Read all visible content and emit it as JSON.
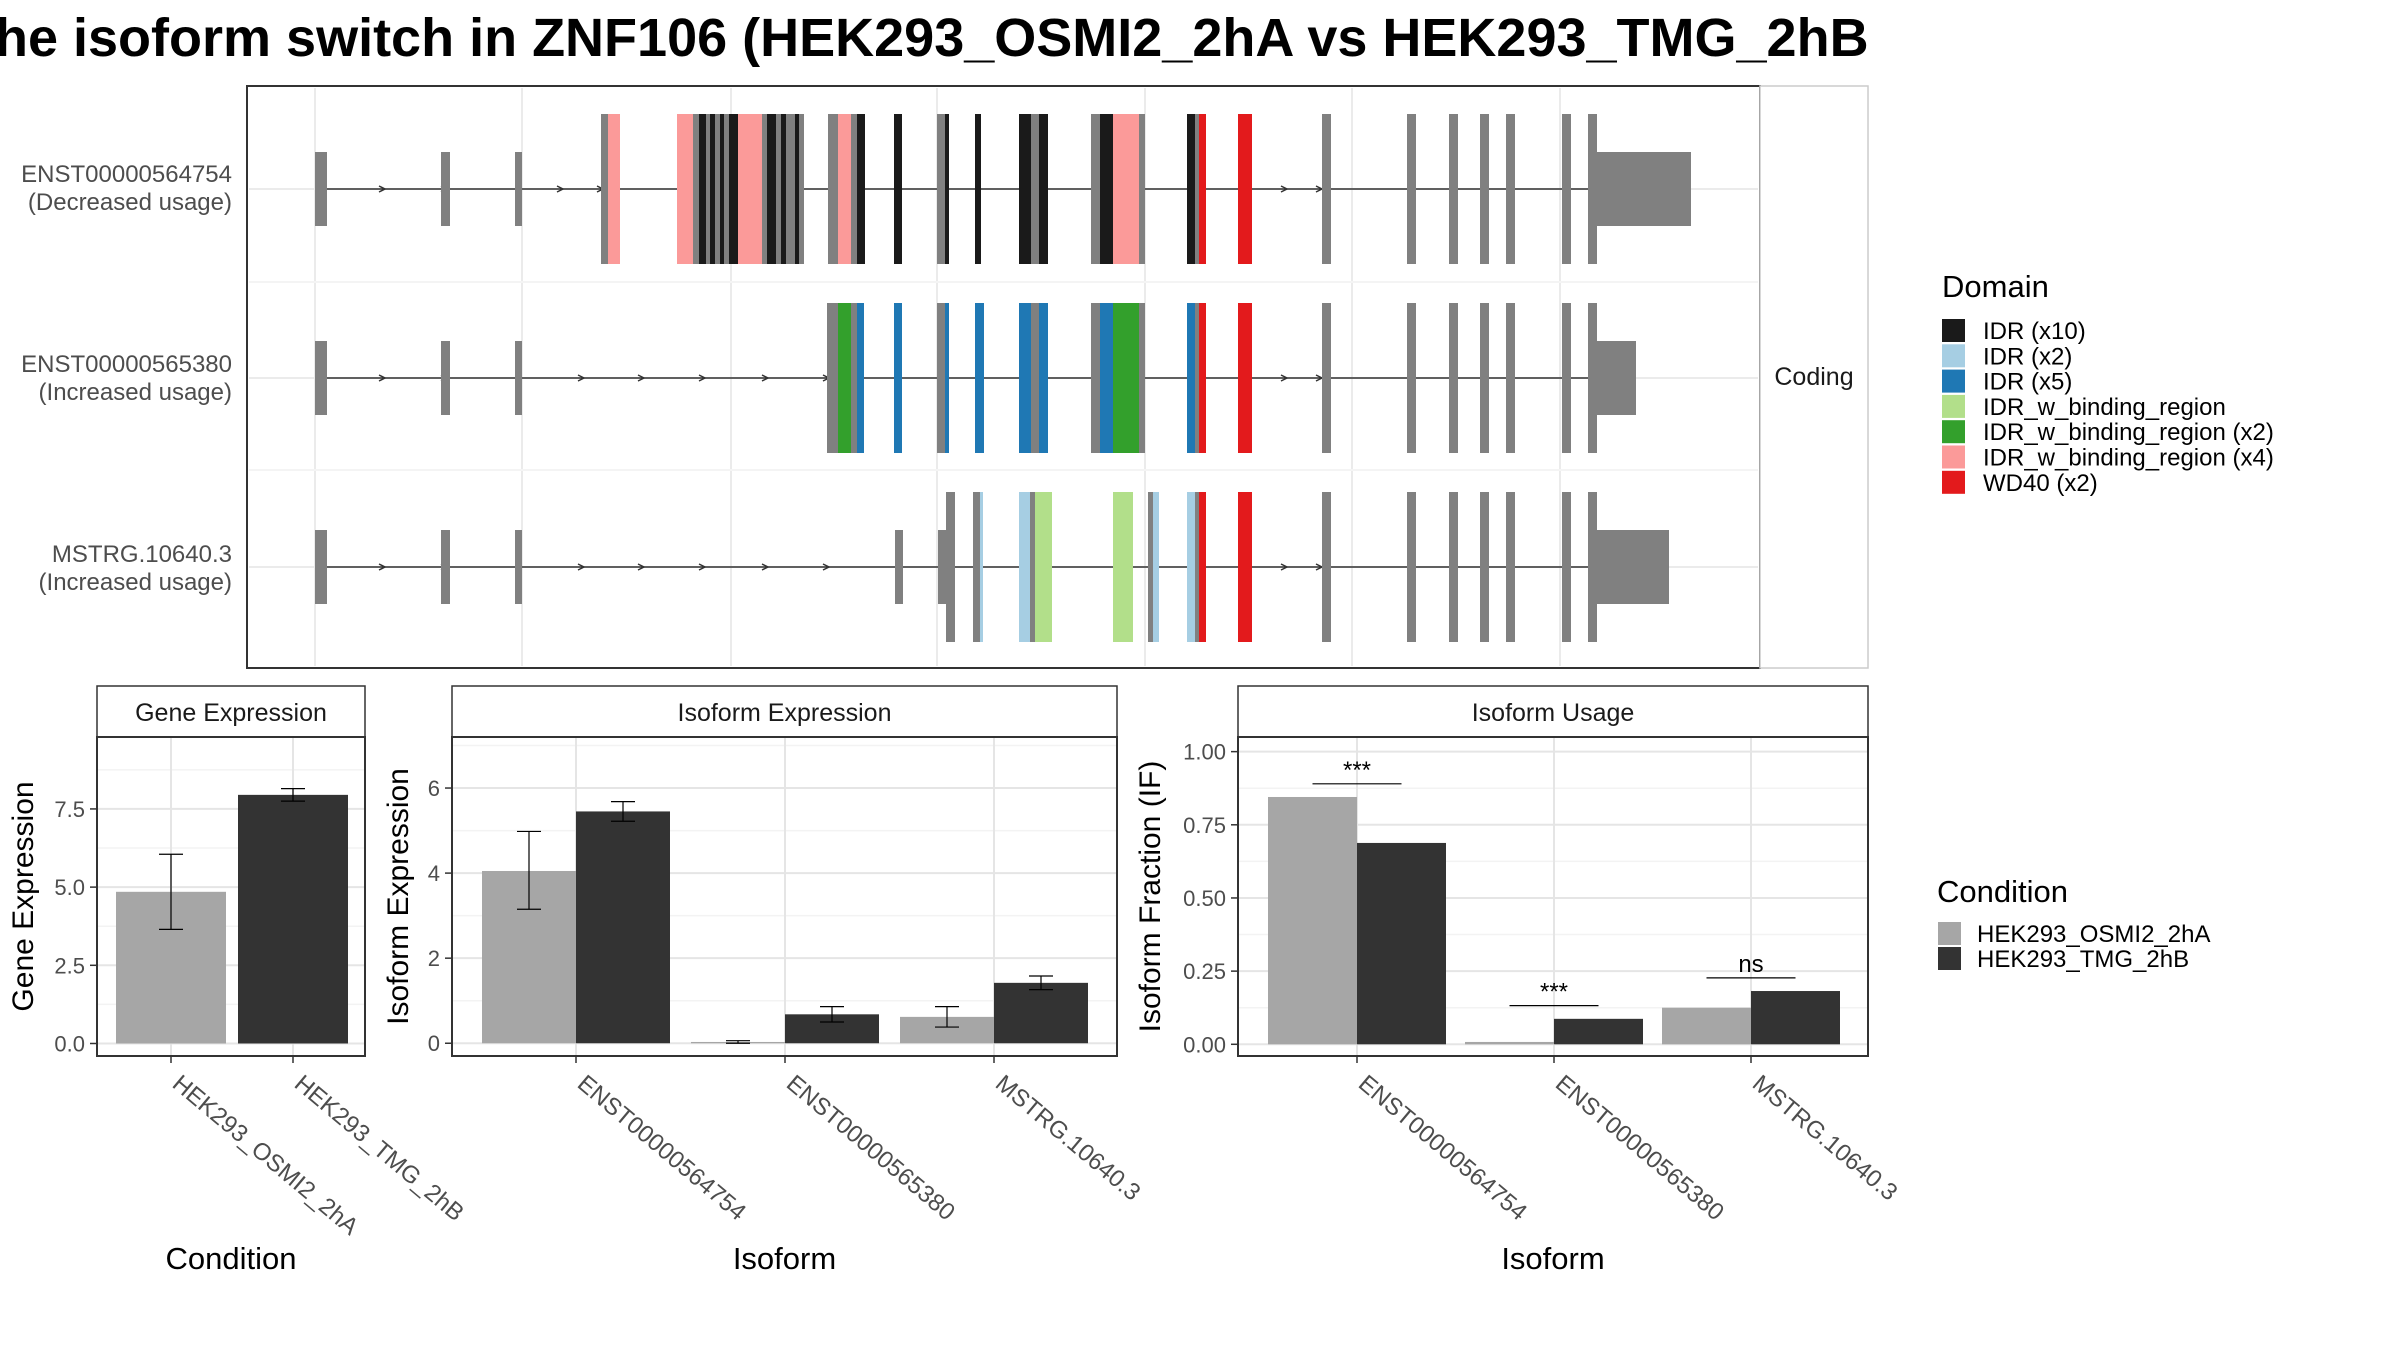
{
  "title": "he isoform switch in ZNF106 (HEK293_OSMI2_2hA vs HEK293_TMG_2hB",
  "colors": {
    "osmi": "#a6a6a6",
    "tmg": "#333333",
    "exon": "#808080"
  },
  "structure": {
    "facet_label": "Coding",
    "isoforms": [
      {
        "name": "ENST00000564754",
        "usage": "(Decreased usage)"
      },
      {
        "name": "ENST00000565380",
        "usage": "(Increased usage)"
      },
      {
        "name": "MSTRG.10640.3",
        "usage": "(Increased usage)"
      }
    ]
  },
  "domain_legend": {
    "title": "Domain",
    "items": [
      {
        "label": "IDR (x10)",
        "color": "#1a1a1a"
      },
      {
        "label": "IDR (x2)",
        "color": "#a6cee3"
      },
      {
        "label": "IDR (x5)",
        "color": "#1f78b4"
      },
      {
        "label": "IDR_w_binding_region",
        "color": "#b2df8a"
      },
      {
        "label": "IDR_w_binding_region (x2)",
        "color": "#33a02c"
      },
      {
        "label": "IDR_w_binding_region (x4)",
        "color": "#fb9a99"
      },
      {
        "label": "WD40 (x2)",
        "color": "#e31a1c"
      }
    ]
  },
  "condition_legend": {
    "title": "Condition",
    "items": [
      {
        "label": "HEK293_OSMI2_2hA",
        "color": "#a6a6a6"
      },
      {
        "label": "HEK293_TMG_2hB",
        "color": "#333333"
      }
    ]
  },
  "chart_data": [
    {
      "type": "bar",
      "title": "Gene Expression",
      "xlabel": "Condition",
      "ylabel": "Gene Expression",
      "categories": [
        "HEK293_OSMI2_2hA",
        "HEK293_TMG_2hB"
      ],
      "values": [
        4.85,
        7.95
      ],
      "errors": [
        [
          3.65,
          6.05
        ],
        [
          7.75,
          8.15
        ]
      ],
      "ylim": [
        -0.4,
        9.8
      ],
      "yticks": [
        0.0,
        2.5,
        5.0,
        7.5
      ],
      "ytick_labels": [
        "0.0",
        "2.5",
        "5.0",
        "7.5"
      ],
      "grid": true
    },
    {
      "type": "bar",
      "title": "Isoform Expression",
      "xlabel": "Isoform",
      "ylabel": "Isoform Expression",
      "categories": [
        "ENST00000564754",
        "ENST00000565380",
        "MSTRG.10640.3"
      ],
      "series": [
        {
          "name": "HEK293_OSMI2_2hA",
          "values": [
            4.05,
            0.03,
            0.62
          ],
          "errors": [
            [
              3.15,
              4.98
            ],
            [
              0.0,
              0.06
            ],
            [
              0.38,
              0.86
            ]
          ]
        },
        {
          "name": "HEK293_TMG_2hB",
          "values": [
            5.45,
            0.68,
            1.42
          ],
          "errors": [
            [
              5.22,
              5.68
            ],
            [
              0.5,
              0.86
            ],
            [
              1.26,
              1.58
            ]
          ]
        }
      ],
      "ylim": [
        -0.3,
        7.2
      ],
      "yticks": [
        0,
        2,
        4,
        6
      ],
      "ytick_labels": [
        "0",
        "2",
        "4",
        "6"
      ],
      "grid": true
    },
    {
      "type": "bar",
      "title": "Isoform Usage",
      "xlabel": "Isoform",
      "ylabel": "Isoform Fraction (IF)",
      "categories": [
        "ENST00000564754",
        "ENST00000565380",
        "MSTRG.10640.3"
      ],
      "series": [
        {
          "name": "HEK293_OSMI2_2hA",
          "values": [
            0.845,
            0.008,
            0.125
          ]
        },
        {
          "name": "HEK293_TMG_2hB",
          "values": [
            0.688,
            0.087,
            0.182
          ]
        }
      ],
      "significance": [
        "***",
        "***",
        "ns"
      ],
      "ylim": [
        -0.04,
        1.05
      ],
      "yticks": [
        0.0,
        0.25,
        0.5,
        0.75,
        1.0
      ],
      "ytick_labels": [
        "0.00",
        "0.25",
        "0.50",
        "0.75",
        "1.00"
      ],
      "grid": true
    }
  ]
}
